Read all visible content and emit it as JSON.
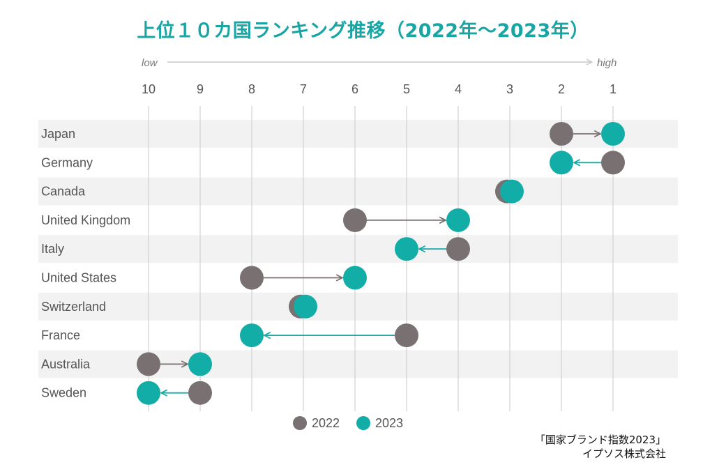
{
  "title": "上位１０カ国ランキング推移（2022年～2023年）",
  "source": {
    "line1": "「国家ブランド指数2023」",
    "line2": "イプソス株式会社"
  },
  "colors": {
    "series_2022": "#787071",
    "series_2023": "#13ada8",
    "title": "#1aa5a5",
    "band": "#f2f2f2",
    "grid": "#d2d2d2",
    "text": "#555555"
  },
  "chart_data": {
    "type": "scatter",
    "title": "上位１０カ国ランキング推移（2022年～2023年）",
    "axis_low_label": "low",
    "axis_high_label": "high",
    "x_ticks": [
      "10",
      "9",
      "8",
      "7",
      "6",
      "5",
      "4",
      "3",
      "2",
      "1"
    ],
    "xlim": [
      10,
      1
    ],
    "categories": [
      "Japan",
      "Germany",
      "Canada",
      "United Kingdom",
      "Italy",
      "United States",
      "Switzerland",
      "France",
      "Australia",
      "Sweden"
    ],
    "series": [
      {
        "name": "2022",
        "values": [
          2,
          1,
          3,
          6,
          4,
          8,
          7,
          5,
          10,
          9
        ]
      },
      {
        "name": "2023",
        "values": [
          1,
          2,
          3,
          4,
          5,
          6,
          7,
          8,
          9,
          10
        ]
      }
    ],
    "legend_position": "bottom-center"
  }
}
